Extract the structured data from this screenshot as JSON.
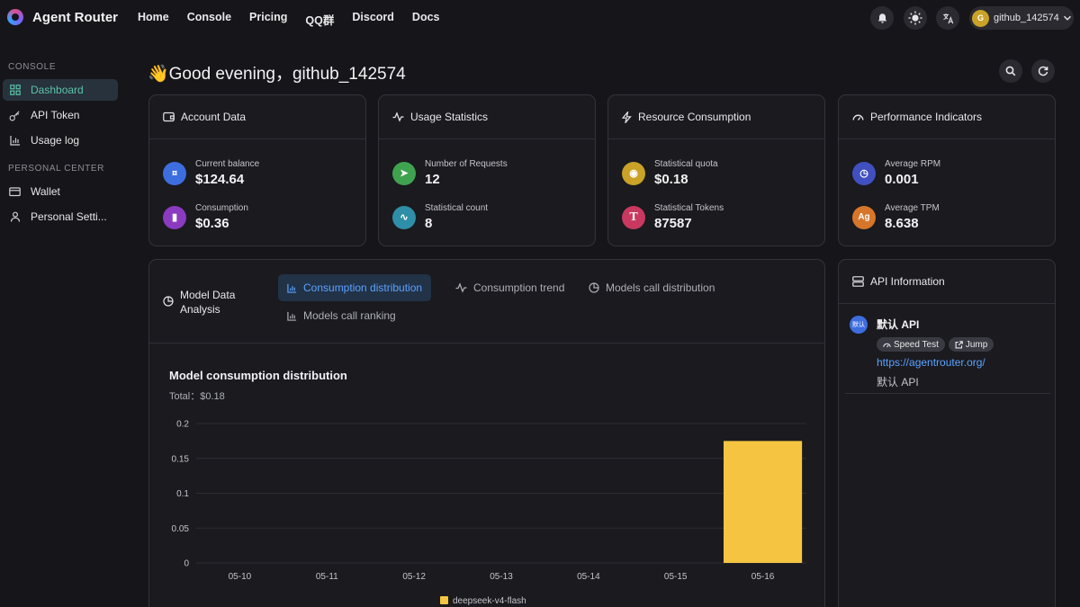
{
  "app": {
    "name": "Agent Router"
  },
  "nav": [
    "Home",
    "Console",
    "Pricing",
    "QQ群",
    "Discord",
    "Docs"
  ],
  "user": {
    "avatar_letter": "G",
    "name": "github_142574"
  },
  "sidebar": {
    "console_title": "CONSOLE",
    "console_items": [
      {
        "label": "Dashboard",
        "icon": "grid-icon",
        "active": true
      },
      {
        "label": "API Token",
        "icon": "key-icon"
      },
      {
        "label": "Usage log",
        "icon": "bar-chart-icon"
      }
    ],
    "personal_title": "PERSONAL CENTER",
    "personal_items": [
      {
        "label": "Wallet",
        "icon": "wallet-icon"
      },
      {
        "label": "Personal Setti...",
        "icon": "user-icon"
      }
    ]
  },
  "greeting": "👋Good evening，github_142574",
  "cards": [
    {
      "title": "Account Data",
      "stats": [
        {
          "label": "Current balance",
          "value": "$124.64",
          "color": "#3d6ee0",
          "glyph": "¤"
        },
        {
          "label": "Consumption",
          "value": "$0.36",
          "color": "#8a3bbf",
          "glyph": "▮"
        }
      ]
    },
    {
      "title": "Usage Statistics",
      "stats": [
        {
          "label": "Number of Requests",
          "value": "12",
          "color": "#3fa24f",
          "glyph": "➤"
        },
        {
          "label": "Statistical count",
          "value": "8",
          "color": "#2f8ea8",
          "glyph": "∿"
        }
      ]
    },
    {
      "title": "Resource Consumption",
      "stats": [
        {
          "label": "Statistical quota",
          "value": "$0.18",
          "color": "#c9a227",
          "glyph": "◉"
        },
        {
          "label": "Statistical Tokens",
          "value": "87587",
          "color": "#c8385f",
          "glyph": "T"
        }
      ]
    },
    {
      "title": "Performance Indicators",
      "stats": [
        {
          "label": "Average RPM",
          "value": "0.001",
          "color": "#4150c0",
          "glyph": "◷"
        },
        {
          "label": "Average TPM",
          "value": "8.638",
          "color": "#d6762a",
          "glyph": "Ag"
        }
      ]
    }
  ],
  "analysis": {
    "title": "Model Data Analysis",
    "tabs": [
      {
        "label": "Consumption distribution",
        "active": true
      },
      {
        "label": "Consumption trend"
      },
      {
        "label": "Models call distribution"
      },
      {
        "label": "Models call ranking"
      }
    ],
    "chart_title": "Model consumption distribution",
    "total": "Total：$0.18"
  },
  "api_info": {
    "title": "API Information",
    "badge": "默认",
    "name": "默认 API",
    "chips": [
      "Speed Test",
      "Jump"
    ],
    "url": "https://agentrouter.org/",
    "desc": "默认 API"
  },
  "chart_data": {
    "type": "bar",
    "title": "Model consumption distribution",
    "categories": [
      "05-10",
      "05-11",
      "05-12",
      "05-13",
      "05-14",
      "05-15",
      "05-16"
    ],
    "series": [
      {
        "name": "deepseek-v4-flash",
        "color": "#f5c542",
        "values": [
          0,
          0,
          0,
          0,
          0,
          0,
          0.175
        ]
      }
    ],
    "yticks": [
      "0",
      "0.05",
      "0.1",
      "0.15",
      "0.2"
    ],
    "ylim": [
      0,
      0.2
    ],
    "grid": true,
    "legend": "bottom"
  }
}
